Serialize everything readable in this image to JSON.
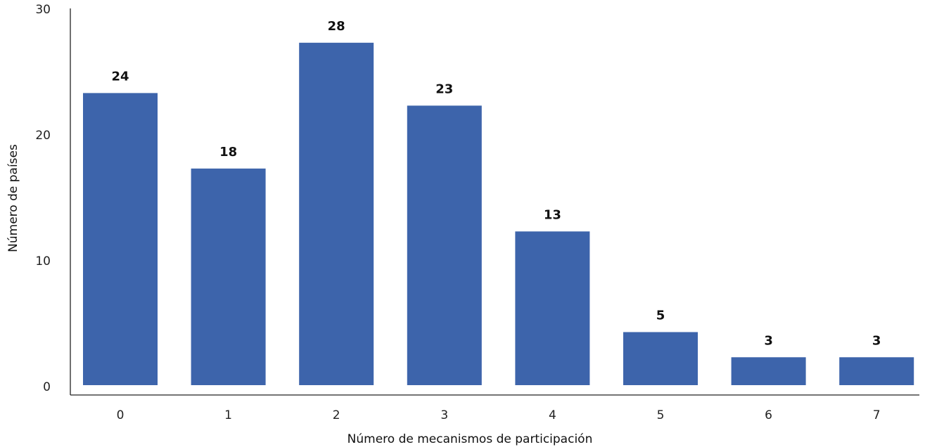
{
  "chart_data": {
    "type": "bar",
    "categories": [
      "0",
      "1",
      "2",
      "3",
      "4",
      "5",
      "6",
      "7"
    ],
    "values": [
      24,
      18,
      28,
      23,
      13,
      5,
      3,
      3
    ],
    "xlabel": "Número de mecanismos de participación",
    "ylabel": "Número de países",
    "ylim": [
      0,
      30
    ],
    "yticks": [
      "0",
      "10",
      "20",
      "30"
    ],
    "bar_color": "#3d64ab",
    "grid": false,
    "legend": "none"
  }
}
